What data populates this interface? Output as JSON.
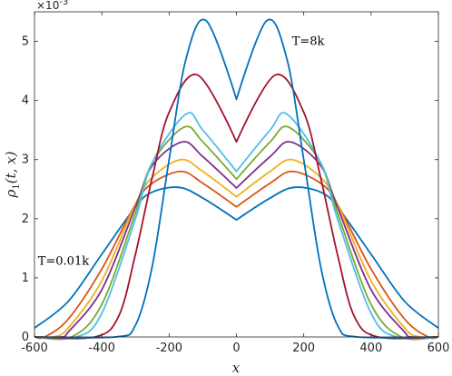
{
  "chart_data": {
    "type": "line",
    "title": "",
    "xlabel": "x",
    "ylabel": "ρ1(t, x)",
    "ylabel_main": "ρ",
    "ylabel_sub": "1",
    "ylabel_args": "(t, x)",
    "y_multiplier": "×10",
    "y_multiplier_exp": "-3",
    "xlim": [
      -600,
      600
    ],
    "ylim": [
      0,
      5.5
    ],
    "x_ticks": [
      -600,
      -400,
      -200,
      0,
      200,
      400,
      600
    ],
    "x_tick_labels": [
      "-600",
      "-400",
      "-200",
      "0",
      "200",
      "400",
      "600"
    ],
    "y_ticks": [
      0,
      1,
      2,
      3,
      4,
      5
    ],
    "y_tick_labels": [
      "0",
      "1",
      "2",
      "3",
      "4",
      "5"
    ],
    "grid": false,
    "annotations": [
      {
        "text": "T=8k",
        "x": 165,
        "y": 5.0
      },
      {
        "text": "T=0.01k",
        "x": -590,
        "y": 1.28
      }
    ],
    "series": [
      {
        "color": "#0072BD",
        "peak_x": 170,
        "peak_y": 2.53,
        "center_y": 1.98,
        "x": [
          0,
          100,
          170,
          250,
          300,
          400,
          500,
          600
        ],
        "y": [
          1.98,
          2.35,
          2.53,
          2.45,
          2.2,
          1.4,
          0.6,
          0.15
        ]
      },
      {
        "color": "#D95319",
        "peak_x": 165,
        "peak_y": 2.8,
        "center_y": 2.2,
        "x": [
          0,
          100,
          165,
          250,
          300,
          400,
          500,
          570
        ],
        "y": [
          2.2,
          2.6,
          2.8,
          2.6,
          2.25,
          1.15,
          0.3,
          0.0
        ]
      },
      {
        "color": "#EDB120",
        "peak_x": 165,
        "peak_y": 3.0,
        "center_y": 2.37,
        "x": [
          0,
          100,
          165,
          250,
          300,
          400,
          500,
          545
        ],
        "y": [
          2.37,
          2.8,
          3.0,
          2.7,
          2.25,
          0.95,
          0.15,
          0.0
        ]
      },
      {
        "color": "#7E2F8E",
        "peak_x": 160,
        "peak_y": 3.3,
        "center_y": 2.52,
        "x": [
          0,
          100,
          160,
          250,
          300,
          400,
          500,
          520
        ],
        "y": [
          2.52,
          3.05,
          3.3,
          2.9,
          2.2,
          0.8,
          0.08,
          0.0
        ]
      },
      {
        "color": "#77AC30",
        "peak_x": 155,
        "peak_y": 3.55,
        "center_y": 2.67,
        "x": [
          0,
          100,
          155,
          250,
          300,
          400,
          490
        ],
        "y": [
          2.67,
          3.3,
          3.55,
          2.95,
          2.1,
          0.55,
          0.0
        ]
      },
      {
        "color": "#4DBEEE",
        "peak_x": 150,
        "peak_y": 3.77,
        "center_y": 2.8,
        "x": [
          0,
          100,
          150,
          250,
          300,
          400,
          475
        ],
        "y": [
          2.8,
          3.5,
          3.77,
          2.95,
          2.0,
          0.4,
          0.0
        ]
      },
      {
        "color": "#A2142F",
        "peak_x": 115,
        "peak_y": 4.43,
        "center_y": 3.3,
        "x": [
          0,
          115,
          200,
          250,
          300,
          350,
          420
        ],
        "y": [
          3.3,
          4.43,
          3.8,
          2.7,
          1.4,
          0.35,
          0.0
        ]
      },
      {
        "color": "#0072BD",
        "peak_x": 90,
        "peak_y": 5.35,
        "center_y": 4.02,
        "x": [
          0,
          90,
          150,
          200,
          250,
          300,
          360
        ],
        "y": [
          4.02,
          5.35,
          4.7,
          3.0,
          1.2,
          0.2,
          0.0
        ]
      }
    ]
  }
}
